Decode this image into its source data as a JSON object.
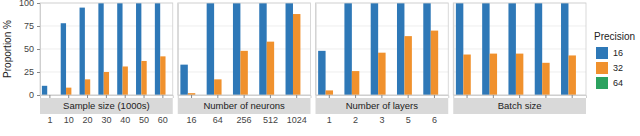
{
  "chart_data": [
    {
      "type": "bar",
      "title": "Sample size (1000s)",
      "y_label": "Proportion %",
      "legend_title": "Precision",
      "legend": "right",
      "grid": true,
      "categories": [
        "1",
        "10",
        "20",
        "30",
        "40",
        "50",
        "60"
      ],
      "ylim": [
        0,
        100
      ],
      "yticks": [
        0,
        25,
        50,
        75,
        100
      ],
      "series": [
        {
          "name": "16",
          "color": "#2e78b7",
          "values": [
            10,
            78,
            95,
            100,
            100,
            100,
            100
          ]
        },
        {
          "name": "32",
          "color": "#f0912d",
          "values": [
            0,
            8,
            17,
            25,
            31,
            37,
            42
          ]
        },
        {
          "name": "64",
          "color": "#2ca25f",
          "values": [
            0,
            0,
            0,
            0,
            0,
            0,
            0
          ]
        }
      ]
    },
    {
      "type": "bar",
      "title": "Number of neurons",
      "grid": true,
      "tick_labels": "x",
      "categories": [
        "16",
        "64",
        "256",
        "512",
        "1024"
      ],
      "ylim": [
        0,
        100
      ],
      "yticks": [
        0,
        25,
        50,
        75,
        100
      ],
      "series": [
        {
          "name": "16",
          "color": "#2e78b7",
          "values": [
            33,
            100,
            100,
            100,
            100
          ]
        },
        {
          "name": "32",
          "color": "#f0912d",
          "values": [
            2,
            17,
            48,
            58,
            88
          ]
        },
        {
          "name": "64",
          "color": "#2ca25f",
          "values": [
            0,
            0,
            0,
            0,
            0
          ]
        }
      ]
    },
    {
      "type": "bar",
      "title": "Number of layers",
      "grid": true,
      "tick_labels": "x",
      "categories": [
        "1",
        "2",
        "3",
        "5",
        "6"
      ],
      "ylim": [
        0,
        100
      ],
      "yticks": [
        0,
        25,
        50,
        75,
        100
      ],
      "series": [
        {
          "name": "16",
          "color": "#2e78b7",
          "values": [
            48,
            100,
            100,
            100,
            100
          ]
        },
        {
          "name": "32",
          "color": "#f0912d",
          "values": [
            5,
            26,
            46,
            64,
            70
          ]
        },
        {
          "name": "64",
          "color": "#2ca25f",
          "values": [
            0,
            0,
            0,
            0,
            0
          ]
        }
      ]
    },
    {
      "type": "bar",
      "title": "Batch size",
      "grid": true,
      "tick_labels": "x",
      "categories": [
        null,
        null,
        null,
        null,
        null
      ],
      "ylim": [
        0,
        100
      ],
      "yticks": [
        0,
        25,
        50,
        75,
        100
      ],
      "series": [
        {
          "name": "16",
          "color": "#2e78b7",
          "values": [
            100,
            100,
            100,
            100,
            100
          ]
        },
        {
          "name": "32",
          "color": "#f0912d",
          "values": [
            44,
            45,
            45,
            35,
            43
          ]
        },
        {
          "name": "64",
          "color": "#2ca25f",
          "values": [
            0,
            0,
            0,
            0,
            0
          ]
        }
      ]
    }
  ]
}
